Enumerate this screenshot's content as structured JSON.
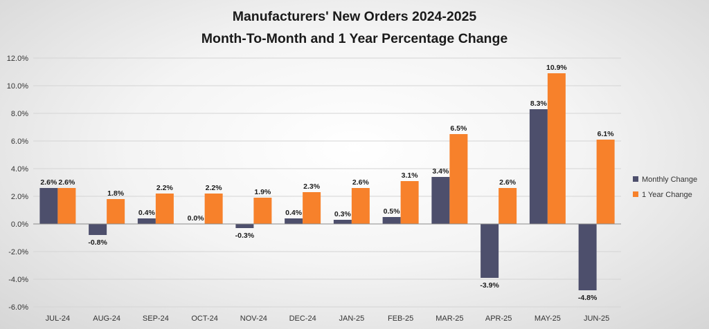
{
  "chart_data": {
    "type": "bar",
    "title": "Manufacturers' New Orders 2024-2025",
    "subtitle": "Month-To-Month and 1 Year Percentage Change",
    "categories": [
      "JUL-24",
      "AUG-24",
      "SEP-24",
      "OCT-24",
      "NOV-24",
      "DEC-24",
      "JAN-25",
      "FEB-25",
      "MAR-25",
      "APR-25",
      "MAY-25",
      "JUN-25"
    ],
    "series": [
      {
        "name": "Monthly Change",
        "color": "#4d4f6c",
        "values": [
          2.6,
          -0.8,
          0.4,
          0.0,
          -0.3,
          0.4,
          0.3,
          0.5,
          3.4,
          -3.9,
          8.3,
          -4.8
        ],
        "labels": [
          "2.6%",
          "-0.8%",
          "0.4%",
          "0.0%",
          "-0.3%",
          "0.4%",
          "0.3%",
          "0.5%",
          "3.4%",
          "-3.9%",
          "8.3%",
          "-4.8%"
        ]
      },
      {
        "name": "1 Year Change",
        "color": "#f7812b",
        "values": [
          2.6,
          1.8,
          2.2,
          2.2,
          1.9,
          2.3,
          2.6,
          3.1,
          6.5,
          2.6,
          10.9,
          6.1
        ],
        "labels": [
          "2.6%",
          "1.8%",
          "2.2%",
          "2.2%",
          "1.9%",
          "2.3%",
          "2.6%",
          "3.1%",
          "6.5%",
          "2.6%",
          "10.9%",
          "6.1%"
        ]
      }
    ],
    "ylim": [
      -6,
      12
    ],
    "yticks": [
      12,
      10,
      8,
      6,
      4,
      2,
      0,
      -2,
      -4,
      -6
    ],
    "ytick_labels": [
      "12.0%",
      "10.0%",
      "8.0%",
      "6.0%",
      "4.0%",
      "2.0%",
      "0.0%",
      "-2.0%",
      "-4.0%",
      "-6.0%"
    ],
    "grid": true,
    "legend_position": "right"
  }
}
